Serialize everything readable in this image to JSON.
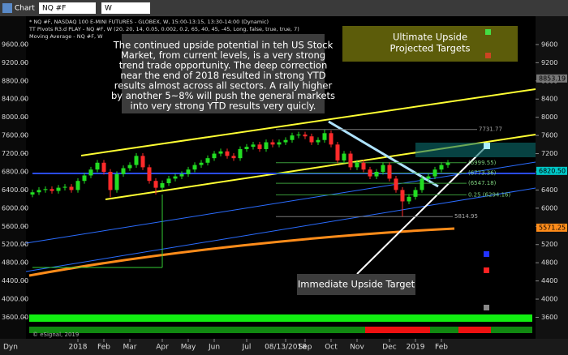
{
  "toolbar": {
    "title": "Chart",
    "symbol": "NQ #F",
    "interval": "W"
  },
  "chart_data": {
    "type": "candlestick",
    "header": [
      "* NQ #F, NASDAQ 100 E-MINI FUTURES - GLOBEX, W, 15:00-13:15, 13:30-14:00 (Dynamic)",
      "TT Pivots R3.d PLAY - NQ #F, W (20, 20, 14, 0.05, 0.002, 0.2, 65, 40, 45, -45, Long, false, true, true, 7)",
      "Moving Average - NQ #F, W"
    ],
    "open": [
      6300,
      6350,
      6400,
      6420,
      6380,
      6450,
      6470,
      6400,
      6600,
      6720,
      6850,
      7000,
      6800,
      6400,
      6750,
      6880,
      6950,
      7150,
      6900,
      6600,
      6450,
      6550,
      6650,
      6700,
      6750,
      6850,
      6950,
      7000,
      7100,
      7200,
      7250,
      7150,
      7100,
      7300,
      7350,
      7400,
      7300,
      7450,
      7400,
      7450,
      7500,
      7600,
      7620,
      7580,
      7450,
      7500,
      7650,
      7400,
      7050,
      7200,
      6900,
      7000,
      6850,
      6700,
      6800,
      6950,
      6650,
      6400,
      6150,
      6250,
      6400,
      6650,
      6700,
      6850,
      6950
    ],
    "high": [
      6410,
      6460,
      6480,
      6480,
      6510,
      6530,
      6530,
      6660,
      6780,
      6910,
      7060,
      7060,
      6860,
      6810,
      6940,
      7010,
      7210,
      7210,
      6960,
      6660,
      6610,
      6710,
      6760,
      6810,
      6910,
      7010,
      7060,
      7160,
      7260,
      7310,
      7310,
      7210,
      7360,
      7410,
      7460,
      7460,
      7510,
      7510,
      7510,
      7560,
      7660,
      7680,
      7680,
      7640,
      7560,
      7730,
      7710,
      7460,
      7260,
      7260,
      7060,
      7060,
      6910,
      6860,
      7010,
      7010,
      6710,
      6460,
      6310,
      6460,
      6710,
      6760,
      6910,
      7010,
      7060
    ],
    "low": [
      6240,
      6290,
      6340,
      6320,
      6320,
      6390,
      6340,
      6340,
      6540,
      6660,
      6790,
      6740,
      6240,
      6340,
      6690,
      6820,
      6890,
      6840,
      6540,
      6300,
      6390,
      6490,
      6590,
      6640,
      6690,
      6790,
      6890,
      6940,
      7040,
      7140,
      7090,
      7040,
      7040,
      7240,
      7290,
      7240,
      7240,
      7340,
      7340,
      7390,
      7440,
      7540,
      7520,
      7390,
      7390,
      7440,
      7340,
      6990,
      6990,
      6840,
      6840,
      6790,
      6640,
      6640,
      6740,
      6590,
      6340,
      5820,
      6090,
      6190,
      6340,
      6590,
      6640,
      6790,
      6890
    ],
    "close": [
      6350,
      6400,
      6420,
      6380,
      6450,
      6470,
      6400,
      6600,
      6720,
      6850,
      7000,
      6800,
      6400,
      6750,
      6880,
      6950,
      7150,
      6900,
      6600,
      6450,
      6550,
      6650,
      6700,
      6750,
      6850,
      6950,
      7000,
      7100,
      7200,
      7250,
      7150,
      7100,
      7300,
      7350,
      7400,
      7300,
      7450,
      7400,
      7450,
      7500,
      7600,
      7620,
      7580,
      7450,
      7500,
      7650,
      7400,
      7050,
      7200,
      6900,
      7000,
      6850,
      6700,
      6800,
      6950,
      6650,
      6400,
      6150,
      6250,
      6400,
      6650,
      6700,
      6850,
      6950,
      7000
    ],
    "up_color": "#22dd22",
    "down_color": "#ff2a2a",
    "ylim": [
      3400,
      10000
    ],
    "yticks": [
      {
        "value": 3600,
        "label": "3600.00"
      },
      {
        "value": 4000,
        "label": "4000.00"
      },
      {
        "value": 4400,
        "label": "4400.00"
      },
      {
        "value": 4800,
        "label": "4800.00"
      },
      {
        "value": 5200,
        "label": "5200.00"
      },
      {
        "value": 5600,
        "label": "5600.00"
      },
      {
        "value": 6000,
        "label": "6000.00"
      },
      {
        "value": 6400,
        "label": "6400.00"
      },
      {
        "value": 6800,
        "label": "6800.00"
      },
      {
        "value": 7200,
        "label": "7200.00"
      },
      {
        "value": 7600,
        "label": "7600.00"
      },
      {
        "value": 8000,
        "label": "8000.00"
      },
      {
        "value": 8400,
        "label": "8400.00"
      },
      {
        "value": 8800,
        "label": "8800.00"
      },
      {
        "value": 9200,
        "label": "9200.00"
      },
      {
        "value": 9600,
        "label": "9600.00"
      }
    ],
    "y2lim": [
      3400,
      10000
    ],
    "y2ticks": [
      3600,
      4000,
      4400,
      4800,
      5200,
      5600,
      6000,
      6400,
      6800,
      7200,
      7600,
      8000,
      8400,
      8800,
      9200,
      9600
    ],
    "xticks": [
      {
        "value": 7,
        "label": "2018"
      },
      {
        "value": 11,
        "label": "Feb"
      },
      {
        "value": 15,
        "label": "Mar"
      },
      {
        "value": 20,
        "label": "Apr"
      },
      {
        "value": 24,
        "label": "May"
      },
      {
        "value": 28,
        "label": "Jun"
      },
      {
        "value": 33,
        "label": "Jul"
      },
      {
        "value": 39,
        "label": "08/13/2018"
      },
      {
        "value": 42,
        "label": "Sep"
      },
      {
        "value": 46,
        "label": "Oct"
      },
      {
        "value": 50,
        "label": "Nov"
      },
      {
        "value": 55,
        "label": "Dec"
      },
      {
        "value": 59,
        "label": "2019"
      },
      {
        "value": 63,
        "label": "Feb"
      }
    ],
    "dyn_button": "Dyn",
    "levels": [
      {
        "value": 7731.77,
        "label": "7731.77"
      },
      {
        "value": 6999.55,
        "label": "(6999.55)"
      },
      {
        "value": 6773.36,
        "label": "(6773.36)"
      },
      {
        "value": 6547.18,
        "label": "(6547.18)"
      },
      {
        "value": 6294.16,
        "label": "0.25 (6294.16)"
      },
      {
        "value": 5814.95,
        "label": "5814.95"
      }
    ],
    "price_tags": [
      {
        "value": 8853.19,
        "label": "8853.19",
        "color": "#777777"
      },
      {
        "value": 6820.5,
        "label": "6820.50",
        "color": "#00c8c8"
      },
      {
        "value": 5571.25,
        "label": "5571.25",
        "color": "#ff8c1a"
      }
    ],
    "annotation": [
      "The continued upside potential in teh US Stock",
      "Market, from current levels, is a very strong",
      "trend trade opportunity.  The deep correction",
      "near the end of 2018 resulted in strong YTD",
      "results almost across all sectors.  A rally higher",
      "by another 5~8% will push the general markets",
      "into very strong YTD results very quicly."
    ],
    "targets_label": [
      "Ultimate Upside",
      "Projected Targets"
    ],
    "immediate_label": "Immediate Upside Target",
    "copyright": "© eSignal, 2019"
  }
}
